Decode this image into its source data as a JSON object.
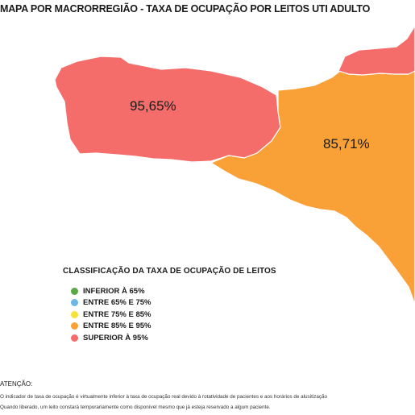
{
  "title": "MAPA POR MACRORREGIÃO - TAXA DE OCUPAÇÃO POR LEITOS UTI ADULTO",
  "regions": [
    {
      "label": "95,65%",
      "value": 95.65,
      "color": "#f46d6b"
    },
    {
      "label": "85,71%",
      "value": 85.71,
      "color": "#f9a136"
    }
  ],
  "legend": {
    "title": "CLASSIFICAÇÃO DA TAXA DE OCUPAÇÃO DE LEITOS",
    "items": [
      {
        "label": "INFERIOR À 65%",
        "color": "#5aa845"
      },
      {
        "label": "ENTRE 65% E 75%",
        "color": "#6cb6e8"
      },
      {
        "label": "ENTRE 75% E 85%",
        "color": "#f7e23a"
      },
      {
        "label": "ENTRE 85% E 95%",
        "color": "#f9a136"
      },
      {
        "label": "SUPERIOR À 95%",
        "color": "#f46d6b"
      }
    ]
  },
  "notes": {
    "heading": "ATENÇÃO:",
    "lines": [
      "O indicador de taxa de ocupação é virtualmente inferior à taxa de ocupação real devido à rotatividade de pacientes e aos horários de alusitização",
      "Quando liberado, um leito constará temporariamente como disponível mesmo que já esteja reservado a algum paciente."
    ]
  },
  "colors": {
    "red_region": "#f46d6b",
    "orange_region": "#f9a136",
    "border": "#ffffff"
  }
}
